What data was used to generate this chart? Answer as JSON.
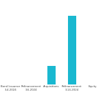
{
  "categories": [
    "Bond Issuance\n3-4-2024",
    "Refinancement\n3-6-2024",
    "Acquisitions\n",
    "Refinancement\n3-14-2024",
    "Equity\n"
  ],
  "values": [
    0,
    0,
    15,
    55,
    0
  ],
  "bar_color": "#1ab8d0",
  "background_color": "#ffffff",
  "ylim": [
    0,
    65
  ],
  "grid_color": "#cccccc",
  "label_fontsize": 2.8,
  "ytick_count": 8,
  "bar_width": 0.4
}
